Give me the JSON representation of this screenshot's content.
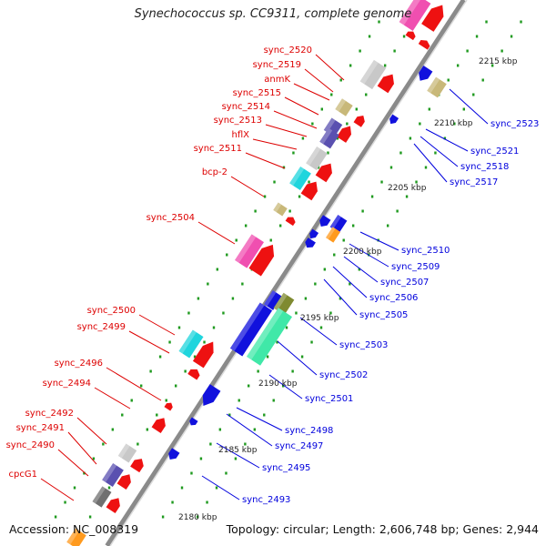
{
  "title": "Synechococcus sp. CC9311, complete genome",
  "footer": {
    "accession": "Accession: NC_008319",
    "summary": "Topology: circular; Length: 2,606,748 bp; Genes: 2,944"
  },
  "colors": {
    "label_left": "#dd0000",
    "label_right": "#0000dd",
    "backbone": "#8a8a8a",
    "tick": "#1f9a1f",
    "red": "#ee1111",
    "blue": "#1111dd",
    "silver": "#c8c8c8",
    "khaki": "#c8b879",
    "slate": "#5a50b0",
    "cyan": "#1fd5dd",
    "magenta": "#f04fb0",
    "pink": "#f7a8d8",
    "olive": "#7f8a30",
    "mint": "#40e8a8",
    "gray": "#707070",
    "orange": "#ff9a1e"
  },
  "scale_labels": [
    "2180 kbp",
    "2185 kbp",
    "2190 kbp",
    "2195 kbp",
    "2200 kbp",
    "2205 kbp",
    "2210 kbp",
    "2215 kbp"
  ],
  "left_labels": [
    "sync_2520",
    "sync_2519",
    "anmK",
    "sync_2515",
    "sync_2514",
    "sync_2513",
    "hflX",
    "sync_2511",
    "bcp-2",
    "sync_2504",
    "sync_2500",
    "sync_2499",
    "sync_2496",
    "sync_2494",
    "sync_2492",
    "sync_2491",
    "sync_2490",
    "cpcG1"
  ],
  "right_labels": [
    "sync_2523",
    "sync_2521",
    "sync_2518",
    "sync_2517",
    "sync_2510",
    "sync_2509",
    "sync_2507",
    "sync_2506",
    "sync_2505",
    "sync_2503",
    "sync_2502",
    "sync_2501",
    "sync_2498",
    "sync_2497",
    "sync_2495",
    "sync_2493"
  ]
}
